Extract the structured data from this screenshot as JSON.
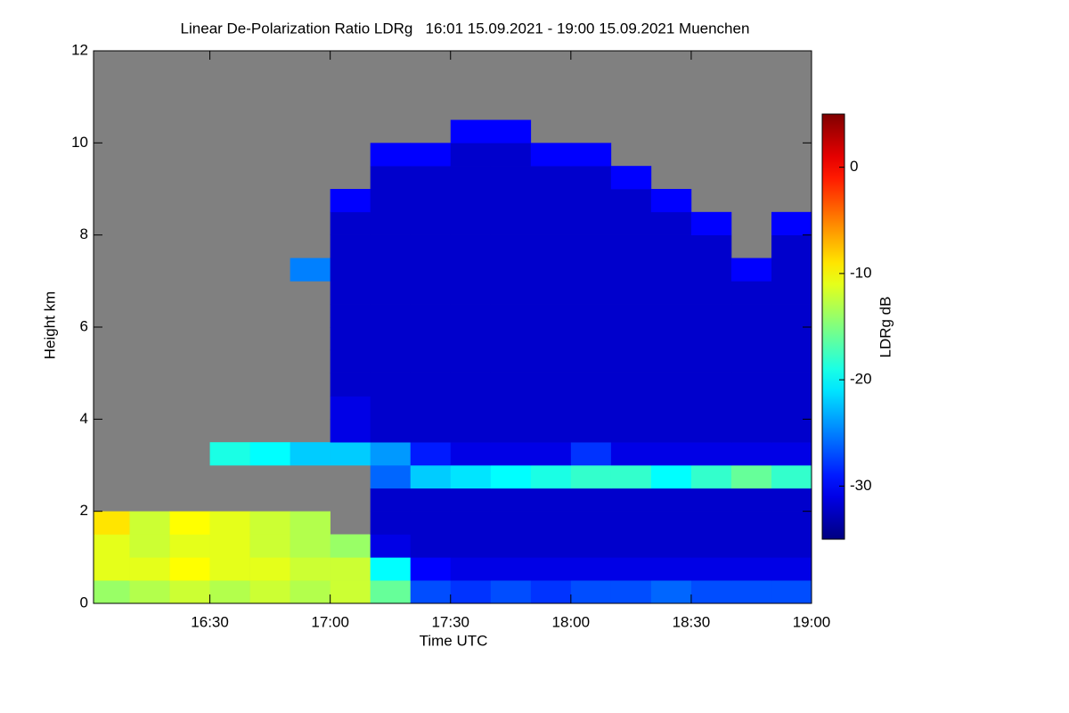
{
  "chart_data": {
    "type": "heatmap",
    "title": "Linear De-Polarization Ratio LDRg   16:01 15.09.2021 - 19:00 15.09.2021 Muenchen",
    "xlabel": "Time UTC",
    "ylabel": "Height km",
    "colorbar_label": "LDRg dB",
    "xlim": [
      961,
      1140
    ],
    "xticks": [
      {
        "value": 990,
        "label": "16:30"
      },
      {
        "value": 1020,
        "label": "17:00"
      },
      {
        "value": 1050,
        "label": "17:30"
      },
      {
        "value": 1080,
        "label": "18:00"
      },
      {
        "value": 1110,
        "label": "18:30"
      },
      {
        "value": 1140,
        "label": "19:00"
      }
    ],
    "ylim": [
      0,
      12
    ],
    "yticks": [
      0,
      2,
      4,
      6,
      8,
      10,
      12
    ],
    "x_bins": [
      961,
      970,
      980,
      990,
      1000,
      1010,
      1020,
      1030,
      1040,
      1050,
      1060,
      1070,
      1080,
      1090,
      1100,
      1110,
      1120,
      1130,
      1140
    ],
    "y_bins": [
      0,
      0.5,
      1,
      1.5,
      2,
      2.5,
      3,
      3.5,
      4,
      4.5,
      5,
      5.5,
      6,
      6.5,
      7,
      7.5,
      8,
      8.5,
      9,
      9.5,
      10,
      10.5,
      11,
      11.5,
      12
    ],
    "values": [
      [
        -14,
        -13,
        -12,
        -13,
        -12,
        -13,
        -12,
        -16,
        -27,
        -28,
        -27,
        -28,
        -27,
        -27,
        -26,
        -27,
        -27,
        -27
      ],
      [
        -11,
        -11,
        -10,
        -11,
        -11,
        -12,
        -12,
        -20,
        -30,
        -31,
        -31,
        -31,
        -31,
        -31,
        -31,
        -31,
        -31,
        -31
      ],
      [
        -11,
        -12,
        -11,
        -11,
        -12,
        -13,
        -14,
        -31,
        -32,
        -32,
        -32,
        -32,
        -32,
        -32,
        -32,
        -32,
        -32,
        -32
      ],
      [
        -9,
        -12,
        -10,
        -11,
        -12,
        -13,
        null,
        -32,
        -32,
        -32,
        -32,
        -32,
        -32,
        -32,
        -32,
        -32,
        -32,
        -32
      ],
      [
        null,
        null,
        null,
        null,
        null,
        null,
        null,
        -32,
        -32,
        -32,
        -32,
        -32,
        -32,
        -32,
        -32,
        -32,
        -32,
        -32
      ],
      [
        null,
        null,
        null,
        null,
        null,
        null,
        null,
        -26,
        -22,
        -21,
        -20,
        -19,
        -18,
        -18,
        -20,
        -18,
        -16,
        -18
      ],
      [
        null,
        null,
        null,
        -19,
        -20,
        -22,
        -22,
        -24,
        -29,
        -31,
        -31,
        -31,
        -28,
        -31,
        -31,
        -31,
        -31,
        -31
      ],
      [
        null,
        null,
        null,
        null,
        null,
        null,
        -31,
        -32,
        -32,
        -32,
        -32,
        -32,
        -32,
        -32,
        -32,
        -32,
        -32,
        -32
      ],
      [
        null,
        null,
        null,
        null,
        null,
        null,
        -31,
        -32,
        -32,
        -32,
        -32,
        -32,
        -32,
        -32,
        -32,
        -32,
        -32,
        -32
      ],
      [
        null,
        null,
        null,
        null,
        null,
        null,
        -32,
        -32,
        -32,
        -32,
        -32,
        -32,
        -32,
        -32,
        -32,
        -32,
        -32,
        -32
      ],
      [
        null,
        null,
        null,
        null,
        null,
        null,
        -32,
        -32,
        -32,
        -32,
        -32,
        -32,
        -32,
        -32,
        -32,
        -32,
        -32,
        -32
      ],
      [
        null,
        null,
        null,
        null,
        null,
        null,
        -32,
        -32,
        -32,
        -32,
        -32,
        -32,
        -32,
        -32,
        -32,
        -32,
        -32,
        -32
      ],
      [
        null,
        null,
        null,
        null,
        null,
        null,
        -32,
        -32,
        -32,
        -32,
        -32,
        -32,
        -32,
        -32,
        -32,
        -32,
        -32,
        -32
      ],
      [
        null,
        null,
        null,
        null,
        null,
        null,
        -32,
        -32,
        -32,
        -32,
        -32,
        -32,
        -32,
        -32,
        -32,
        -32,
        -32,
        -32
      ],
      [
        null,
        null,
        null,
        null,
        null,
        -25,
        -32,
        -32,
        -32,
        -32,
        -32,
        -32,
        -32,
        -32,
        -32,
        -32,
        -30,
        -32
      ],
      [
        null,
        null,
        null,
        null,
        null,
        null,
        -32,
        -32,
        -32,
        -32,
        -32,
        -32,
        -32,
        -32,
        -32,
        -32,
        null,
        -32
      ],
      [
        null,
        null,
        null,
        null,
        null,
        null,
        -32,
        -32,
        -32,
        -32,
        -32,
        -32,
        -32,
        -32,
        -32,
        -30,
        null,
        -30
      ],
      [
        null,
        null,
        null,
        null,
        null,
        null,
        -30,
        -32,
        -32,
        -32,
        -32,
        -32,
        -32,
        -32,
        -30,
        null,
        null,
        null
      ],
      [
        null,
        null,
        null,
        null,
        null,
        null,
        null,
        -32,
        -32,
        -32,
        -32,
        -32,
        -32,
        -30,
        null,
        null,
        null,
        null
      ],
      [
        null,
        null,
        null,
        null,
        null,
        null,
        null,
        -30,
        -30,
        -32,
        -32,
        -30,
        -30,
        null,
        null,
        null,
        null,
        null
      ],
      [
        null,
        null,
        null,
        null,
        null,
        null,
        null,
        null,
        null,
        -30,
        -30,
        null,
        null,
        null,
        null,
        null,
        null,
        null
      ],
      [
        null,
        null,
        null,
        null,
        null,
        null,
        null,
        null,
        null,
        null,
        null,
        null,
        null,
        null,
        null,
        null,
        null,
        null
      ],
      [
        null,
        null,
        null,
        null,
        null,
        null,
        null,
        null,
        null,
        null,
        null,
        null,
        null,
        null,
        null,
        null,
        null,
        null
      ],
      [
        null,
        null,
        null,
        null,
        null,
        null,
        null,
        null,
        null,
        null,
        null,
        null,
        null,
        null,
        null,
        null,
        null,
        null
      ]
    ],
    "clim": [
      -35,
      5
    ],
    "cticks": [
      0,
      -10,
      -20,
      -30
    ],
    "colormap": "jet",
    "missing_color": "#808080"
  }
}
